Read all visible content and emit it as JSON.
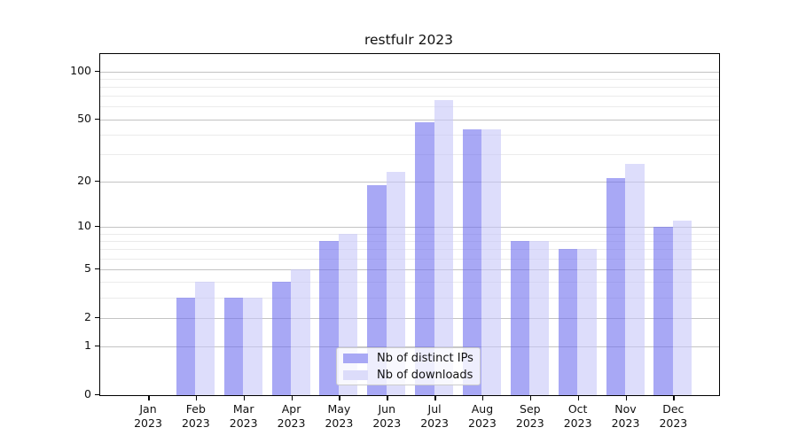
{
  "chart_data": {
    "type": "bar",
    "title": "restfulr 2023",
    "categories": [
      "Jan",
      "Feb",
      "Mar",
      "Apr",
      "May",
      "Jun",
      "Jul",
      "Aug",
      "Sep",
      "Oct",
      "Nov",
      "Dec"
    ],
    "year_label": "2023",
    "series": [
      {
        "name": "Nb of distinct IPs",
        "color": "rgba(110,110,238,0.6)",
        "solid_hex": "#a8a8f5",
        "values": [
          0,
          3,
          3,
          4,
          8,
          19,
          48,
          43,
          8,
          7,
          21,
          10
        ]
      },
      {
        "name": "Nb of downloads",
        "color": "rgba(198,198,248,0.6)",
        "solid_hex": "#dcdcfa",
        "values": [
          0,
          4,
          3,
          5,
          9,
          23,
          66,
          43,
          8,
          7,
          26,
          11
        ]
      }
    ],
    "yscale": "log1p",
    "ylim": [
      0,
      130
    ],
    "yticks_major": [
      0,
      1,
      2,
      5,
      10,
      20,
      50,
      100
    ],
    "yticks_minor": [
      3,
      4,
      6,
      7,
      8,
      9,
      30,
      40,
      60,
      70,
      80,
      90
    ],
    "grid": true,
    "legend_position": "lower center"
  },
  "colors": {
    "grid_major": "#c3c3c3",
    "grid_minor": "#ebebeb",
    "spine": "#000000",
    "background": "#ffffff",
    "text": "#111111",
    "legend_border": "#cccccc"
  }
}
